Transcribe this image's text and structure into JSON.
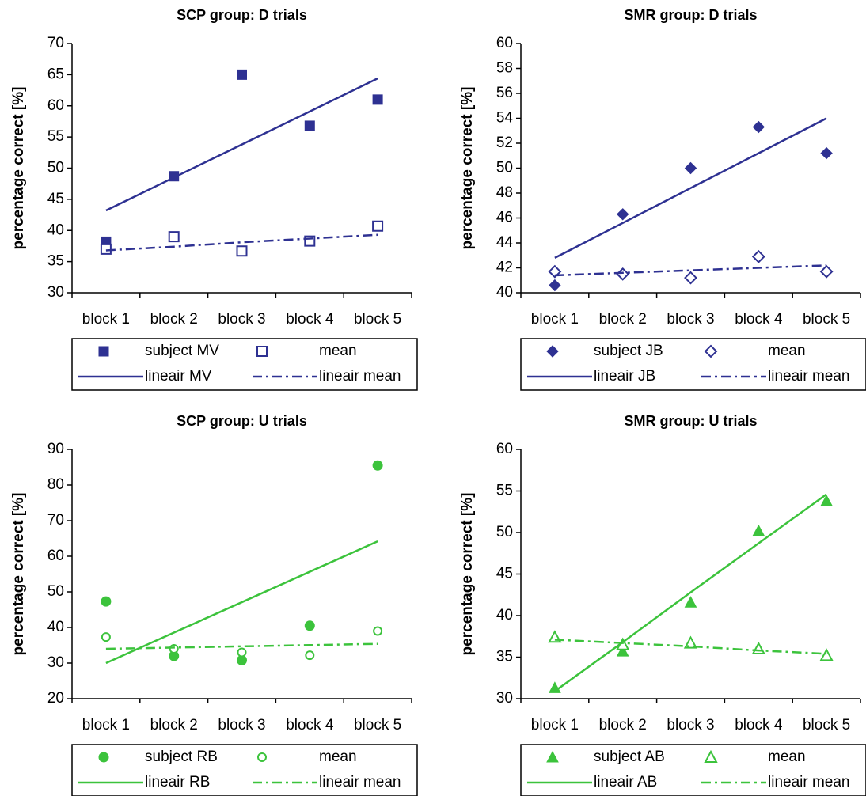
{
  "chart_data": [
    {
      "type": "scatter-trend",
      "title": "SCP group: D trials",
      "y_label": "percentage correct [%]",
      "categories": [
        "block 1",
        "block 2",
        "block 3",
        "block 4",
        "block 5"
      ],
      "ylim": [
        30,
        70
      ],
      "yticks": [
        30,
        35,
        40,
        45,
        50,
        55,
        60,
        65,
        70
      ],
      "series": [
        {
          "name": "subject MV",
          "color": "#2e3192",
          "marker": "square",
          "values": [
            38.2,
            48.7,
            65,
            56.8,
            61
          ]
        },
        {
          "name": "mean",
          "color": "#2e3192",
          "marker": "square-open",
          "values": [
            37,
            39,
            36.7,
            38.3,
            40.7
          ]
        },
        {
          "name": "lineair MV",
          "color": "#2e3192",
          "line": "solid",
          "values": [
            43.2,
            48.5,
            53.8,
            59.1,
            64.4
          ]
        },
        {
          "name": "lineair mean",
          "color": "#2e3192",
          "line": "dashdot",
          "values": [
            36.8,
            37.4,
            38.1,
            38.7,
            39.3
          ]
        }
      ]
    },
    {
      "type": "scatter-trend",
      "title": "SMR group: D trials",
      "y_label": "percentage correct [%]",
      "categories": [
        "block 1",
        "block 2",
        "block 3",
        "block 4",
        "block 5"
      ],
      "ylim": [
        40,
        60
      ],
      "yticks": [
        40,
        42,
        44,
        46,
        48,
        50,
        52,
        54,
        56,
        58,
        60
      ],
      "series": [
        {
          "name": "subject JB",
          "color": "#2e3192",
          "marker": "diamond",
          "values": [
            40.6,
            46.3,
            50,
            53.3,
            51.2
          ]
        },
        {
          "name": "mean",
          "color": "#2e3192",
          "marker": "diamond-open",
          "values": [
            41.7,
            41.5,
            41.2,
            42.9,
            41.7
          ]
        },
        {
          "name": "lineair JB",
          "color": "#2e3192",
          "line": "solid",
          "values": [
            42.8,
            45.6,
            48.4,
            51.2,
            54
          ]
        },
        {
          "name": "lineair mean",
          "color": "#2e3192",
          "line": "dashdot",
          "values": [
            41.4,
            41.6,
            41.8,
            42,
            42.2
          ]
        }
      ]
    },
    {
      "type": "scatter-trend",
      "title": "SCP group: U trials",
      "y_label": "percentage correct [%]",
      "categories": [
        "block 1",
        "block 2",
        "block 3",
        "block 4",
        "block 5"
      ],
      "ylim": [
        20,
        90
      ],
      "yticks": [
        20,
        30,
        40,
        50,
        60,
        70,
        80,
        90
      ],
      "series": [
        {
          "name": "subject RB",
          "color": "#3cc33c",
          "marker": "circle",
          "values": [
            47.3,
            32,
            30.8,
            40.5,
            85.5
          ]
        },
        {
          "name": "mean",
          "color": "#3cc33c",
          "marker": "circle-open",
          "values": [
            37.3,
            34,
            33,
            32.2,
            39
          ]
        },
        {
          "name": "lineair RB",
          "color": "#3cc33c",
          "line": "solid",
          "values": [
            30,
            38.55,
            47.1,
            55.65,
            64.2
          ]
        },
        {
          "name": "lineair mean",
          "color": "#3cc33c",
          "line": "dashdot",
          "values": [
            34,
            34.35,
            34.7,
            35.05,
            35.4
          ]
        }
      ]
    },
    {
      "type": "scatter-trend",
      "title": "SMR group: U trials",
      "y_label": "percentage correct [%]",
      "categories": [
        "block 1",
        "block 2",
        "block 3",
        "block 4",
        "block 5"
      ],
      "ylim": [
        30,
        60
      ],
      "yticks": [
        30,
        35,
        40,
        45,
        50,
        55,
        60
      ],
      "series": [
        {
          "name": "subject AB",
          "color": "#3cc33c",
          "marker": "triangle",
          "values": [
            31.3,
            35.7,
            41.6,
            50.2,
            53.8
          ]
        },
        {
          "name": "mean",
          "color": "#3cc33c",
          "marker": "triangle-open",
          "values": [
            37.4,
            36.5,
            36.7,
            36,
            35.2
          ]
        },
        {
          "name": "lineair AB",
          "color": "#3cc33c",
          "line": "solid",
          "values": [
            30.9,
            36.8,
            42.8,
            48.7,
            54.6
          ]
        },
        {
          "name": "lineair mean",
          "color": "#3cc33c",
          "line": "dashdot",
          "values": [
            37.1,
            36.7,
            36.3,
            35.8,
            35.4
          ]
        }
      ]
    }
  ]
}
